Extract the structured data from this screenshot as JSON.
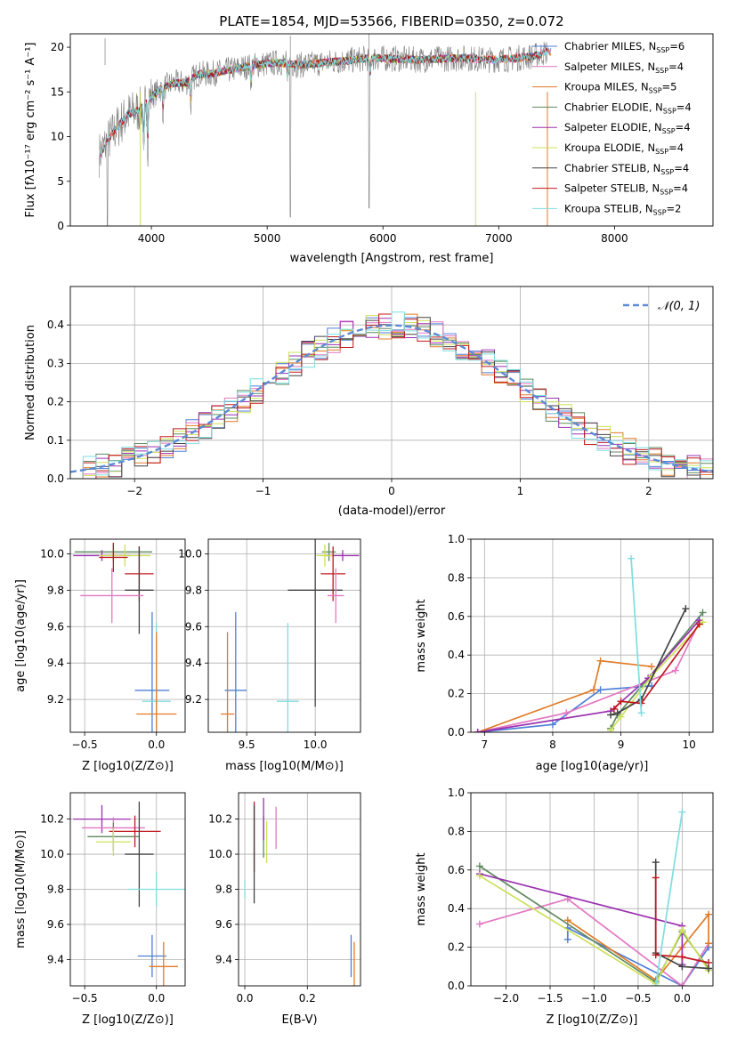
{
  "chart_data": [
    {
      "id": "spectrum",
      "type": "line",
      "title": "PLATE=1854, MJD=53566, FIBERID=0350, z=0.072",
      "xlabel": "wavelength [Angstrom, rest frame]",
      "ylabel": "Flux [fλ10⁻¹⁷ erg cm⁻² s⁻¹ A⁻¹]",
      "xlim": [
        3300,
        8850
      ],
      "ylim": [
        0,
        21.5
      ],
      "xticks": [
        4000,
        5000,
        6000,
        7000,
        8000
      ],
      "yticks": [
        0,
        5,
        10,
        15,
        20
      ],
      "grid": false,
      "legend_position": "upper-right",
      "observed_spectrum": {
        "color": "#808080",
        "x": [
          3550,
          3600,
          3700,
          3800,
          3900,
          4000,
          4100,
          4200,
          4300,
          4400,
          4500,
          4700,
          4900,
          5100,
          5300,
          5500,
          5700,
          5900,
          6100,
          6300,
          6500,
          6700,
          6900,
          7100,
          7300,
          7420
        ],
        "y": [
          8,
          9,
          11,
          12.5,
          13,
          14.5,
          15.5,
          16,
          16,
          17,
          17,
          17.5,
          18,
          18.3,
          18,
          18.3,
          18.5,
          18.8,
          18.7,
          18.6,
          18.7,
          18.8,
          18.6,
          18.7,
          19,
          19.5
        ]
      },
      "series": [
        {
          "name": "Chabrier MILES, N_SSP=6",
          "color": "#4f7fd6",
          "x_range": [
            3550,
            7450
          ]
        },
        {
          "name": "Salpeter MILES, N_SSP=4",
          "color": "#e377c2",
          "x_range": [
            3550,
            7450
          ]
        },
        {
          "name": "Kroupa MILES, N_SSP=5",
          "color": "#e07b28",
          "x_range": [
            3550,
            7450
          ]
        },
        {
          "name": "Chabrier ELODIE, N_SSP=4",
          "color": "#5f8a5f",
          "x_range": [
            3900,
            6800
          ]
        },
        {
          "name": "Salpeter ELODIE, N_SSP=4",
          "color": "#9b30b0",
          "x_range": [
            3900,
            6800
          ]
        },
        {
          "name": "Kroupa ELODIE, N_SSP=4",
          "color": "#cde05a",
          "x_range": [
            3900,
            6800
          ]
        },
        {
          "name": "Chabrier STELIB, N_SSP=4",
          "color": "#444444",
          "x_range": [
            3550,
            7420
          ]
        },
        {
          "name": "Salpeter STELIB, N_SSP=4",
          "color": "#c0191f",
          "x_range": [
            3550,
            7420
          ]
        },
        {
          "name": "Kroupa STELIB, N_SSP=2",
          "color": "#7fdde0",
          "x_range": [
            3550,
            7420
          ]
        }
      ],
      "legend_labels": [
        {
          "pre": "Chabrier MILES, N",
          "sub": "SSP",
          "post": "=6"
        },
        {
          "pre": "Salpeter MILES, N",
          "sub": "SSP",
          "post": "=4"
        },
        {
          "pre": "Kroupa MILES, N",
          "sub": "SSP",
          "post": "=5"
        },
        {
          "pre": "Chabrier ELODIE, N",
          "sub": "SSP",
          "post": "=4"
        },
        {
          "pre": "Salpeter ELODIE, N",
          "sub": "SSP",
          "post": "=4"
        },
        {
          "pre": "Kroupa ELODIE, N",
          "sub": "SSP",
          "post": "=4"
        },
        {
          "pre": "Chabrier STELIB, N",
          "sub": "SSP",
          "post": "=4"
        },
        {
          "pre": "Salpeter STELIB, N",
          "sub": "SSP",
          "post": "=4"
        },
        {
          "pre": "Kroupa STELIB, N",
          "sub": "SSP",
          "post": "=2"
        }
      ]
    },
    {
      "id": "residual-histogram",
      "type": "histogram",
      "xlabel": "(data-model)/error",
      "ylabel": "Normed distribution",
      "xlim": [
        -2.5,
        2.5
      ],
      "ylim": [
        0,
        0.5
      ],
      "xticks": [
        -2,
        -1,
        0,
        1,
        2
      ],
      "yticks": [
        0.0,
        0.1,
        0.2,
        0.3,
        0.4
      ],
      "grid": true,
      "legend_position": "upper-right",
      "legend": "𝒩(0, 1)",
      "reference_curve": {
        "name": "N(0,1)",
        "mean": 0,
        "sigma": 1,
        "color": "#5b8bd6",
        "style": "dashed"
      },
      "bin_width": 0.1
    },
    {
      "id": "age-vs-z",
      "type": "scatter-errorbar",
      "xlabel": "Z [log10(Z/Z⊙)]",
      "ylabel": "age [log10(age/yr)]",
      "xlim": [
        -0.6,
        0.2
      ],
      "ylim": [
        9.02,
        10.08
      ],
      "xticks": [
        -0.5,
        0.0
      ],
      "yticks": [
        9.2,
        9.4,
        9.6,
        9.8,
        10.0
      ],
      "grid": true,
      "points": [
        {
          "x": -0.3,
          "y": 10.01,
          "ex": 0.27,
          "ey": 0.05,
          "color": "#5f8a5f"
        },
        {
          "x": -0.38,
          "y": 9.99,
          "ex": 0.2,
          "ey": 0.03,
          "color": "#9b30b0"
        },
        {
          "x": -0.22,
          "y": 9.99,
          "ex": 0.18,
          "ey": 0.06,
          "color": "#cde05a"
        },
        {
          "x": -0.3,
          "y": 9.98,
          "ex": 0.1,
          "ey": 0.08,
          "color": "#c0191f"
        },
        {
          "x": -0.12,
          "y": 9.89,
          "ex": 0.1,
          "ey": 0.15,
          "color": "#c0191f"
        },
        {
          "x": -0.12,
          "y": 9.8,
          "ex": 0.1,
          "ey": 0.24,
          "color": "#444444"
        },
        {
          "x": -0.31,
          "y": 9.77,
          "ex": 0.22,
          "ey": 0.15,
          "color": "#e377c2"
        },
        {
          "x": -0.03,
          "y": 9.25,
          "ex": 0.12,
          "ey": 0.43,
          "color": "#4f7fd6"
        },
        {
          "x": 0.0,
          "y": 9.19,
          "ex": 0.1,
          "ey": 0.43,
          "color": "#7fdde0"
        },
        {
          "x": 0.0,
          "y": 9.12,
          "ex": 0.14,
          "ey": 0.45,
          "color": "#e07b28"
        }
      ]
    },
    {
      "id": "age-vs-mass",
      "type": "scatter-errorbar",
      "xlabel": "mass [log10(M/M⊙)]",
      "ylabel": "",
      "xlim": [
        9.22,
        10.33
      ],
      "ylim": [
        9.02,
        10.08
      ],
      "xticks": [
        9.5,
        10.0
      ],
      "yticks": [
        9.2,
        9.4,
        9.6,
        9.8,
        10.0
      ],
      "grid": true,
      "points": [
        {
          "x": 10.1,
          "y": 10.01,
          "ex": 0.05,
          "ey": 0.05,
          "color": "#5f8a5f"
        },
        {
          "x": 10.2,
          "y": 9.99,
          "ex": 0.12,
          "ey": 0.03,
          "color": "#9b30b0"
        },
        {
          "x": 10.07,
          "y": 9.99,
          "ex": 0.06,
          "ey": 0.06,
          "color": "#cde05a"
        },
        {
          "x": 10.13,
          "y": 9.89,
          "ex": 0.09,
          "ey": 0.15,
          "color": "#c0191f"
        },
        {
          "x": 10.0,
          "y": 9.8,
          "ex": 0.2,
          "ey": 0.64,
          "color": "#444444"
        },
        {
          "x": 10.15,
          "y": 9.77,
          "ex": 0.06,
          "ey": 0.15,
          "color": "#e377c2"
        },
        {
          "x": 9.42,
          "y": 9.25,
          "ex": 0.08,
          "ey": 0.43,
          "color": "#4f7fd6"
        },
        {
          "x": 9.8,
          "y": 9.19,
          "ex": 0.08,
          "ey": 0.43,
          "color": "#7fdde0"
        },
        {
          "x": 9.36,
          "y": 9.12,
          "ex": 0.05,
          "ey": 0.45,
          "color": "#e07b28"
        }
      ]
    },
    {
      "id": "weight-vs-age",
      "type": "line",
      "xlabel": "age [log10(age/yr)]",
      "ylabel": "mass weight",
      "xlim": [
        6.8,
        10.35
      ],
      "ylim": [
        0,
        1.0
      ],
      "xticks": [
        7,
        8,
        9,
        10
      ],
      "yticks": [
        0.0,
        0.2,
        0.4,
        0.6,
        0.8,
        1.0
      ],
      "grid": true,
      "series": [
        {
          "color": "#4f7fd6",
          "x": [
            6.9,
            8.0,
            8.7,
            9.45
          ],
          "y": [
            0.0,
            0.04,
            0.22,
            0.24
          ]
        },
        {
          "color": "#e377c2",
          "x": [
            6.9,
            8.2,
            9.8,
            10.15
          ],
          "y": [
            0.0,
            0.1,
            0.32,
            0.57
          ]
        },
        {
          "color": "#e07b28",
          "x": [
            6.9,
            8.6,
            8.7,
            9.45
          ],
          "y": [
            0.0,
            0.22,
            0.37,
            0.34
          ]
        },
        {
          "color": "#5f8a5f",
          "x": [
            8.85,
            8.95,
            9.4,
            10.2
          ],
          "y": [
            0.02,
            0.09,
            0.28,
            0.62
          ]
        },
        {
          "color": "#9b30b0",
          "x": [
            6.9,
            8.85,
            9.4,
            10.15
          ],
          "y": [
            0.0,
            0.11,
            0.28,
            0.58
          ]
        },
        {
          "color": "#cde05a",
          "x": [
            8.85,
            9.0,
            9.45,
            10.2
          ],
          "y": [
            0.01,
            0.08,
            0.29,
            0.57
          ]
        },
        {
          "color": "#444444",
          "x": [
            8.85,
            8.95,
            9.3,
            9.95
          ],
          "y": [
            0.09,
            0.1,
            0.17,
            0.64
          ]
        },
        {
          "color": "#c0191f",
          "x": [
            8.9,
            9.0,
            9.3,
            10.15
          ],
          "y": [
            0.12,
            0.16,
            0.15,
            0.56
          ]
        },
        {
          "color": "#7fdde0",
          "x": [
            9.15,
            9.3
          ],
          "y": [
            0.9,
            0.1
          ]
        }
      ]
    },
    {
      "id": "mass-vs-z",
      "type": "scatter-errorbar",
      "xlabel": "Z [log10(Z/Z⊙)]",
      "ylabel": "mass [log10(M/M⊙)]",
      "xlim": [
        -0.6,
        0.2
      ],
      "ylim": [
        9.25,
        10.35
      ],
      "xticks": [
        -0.5,
        0.0
      ],
      "yticks": [
        9.4,
        9.6,
        9.8,
        10.0,
        10.2
      ],
      "grid": true,
      "points": [
        {
          "x": -0.38,
          "y": 10.2,
          "ex": 0.2,
          "ey": 0.08,
          "color": "#9b30b0"
        },
        {
          "x": -0.3,
          "y": 10.15,
          "ex": 0.22,
          "ey": 0.06,
          "color": "#e377c2"
        },
        {
          "x": -0.15,
          "y": 10.13,
          "ex": 0.18,
          "ey": 0.09,
          "color": "#c0191f"
        },
        {
          "x": -0.3,
          "y": 10.1,
          "ex": 0.18,
          "ey": 0.08,
          "color": "#5f8a5f"
        },
        {
          "x": -0.3,
          "y": 10.07,
          "ex": 0.12,
          "ey": 0.08,
          "color": "#cde05a"
        },
        {
          "x": -0.12,
          "y": 10.0,
          "ex": 0.1,
          "ey": 0.3,
          "color": "#444444"
        },
        {
          "x": 0.0,
          "y": 9.8,
          "ex": 0.2,
          "ey": 0.1,
          "color": "#7fdde0"
        },
        {
          "x": -0.03,
          "y": 9.42,
          "ex": 0.1,
          "ey": 0.12,
          "color": "#4f7fd6"
        },
        {
          "x": 0.05,
          "y": 9.36,
          "ex": 0.1,
          "ey": 0.14,
          "color": "#e07b28"
        }
      ]
    },
    {
      "id": "mass-vs-ebv",
      "type": "scatter-errorbar",
      "xlabel": "E(B-V)",
      "ylabel": "",
      "xlim": [
        -0.02,
        0.37
      ],
      "ylim": [
        9.25,
        10.35
      ],
      "xticks": [
        0.0,
        0.2
      ],
      "yticks": [
        9.4,
        9.6,
        9.8,
        10.0,
        10.2
      ],
      "grid": true,
      "points": [
        {
          "x": 0.0,
          "y": 9.8,
          "ex": 0.0,
          "ey": 0.05,
          "color": "#7fdde0"
        },
        {
          "x": 0.03,
          "y": 10.1,
          "ex": 0.0,
          "ey": 0.2,
          "color": "#c0191f"
        },
        {
          "x": 0.03,
          "y": 10.0,
          "ex": 0.0,
          "ey": 0.28,
          "color": "#444444"
        },
        {
          "x": 0.06,
          "y": 10.1,
          "ex": 0.0,
          "ey": 0.12,
          "color": "#5f8a5f"
        },
        {
          "x": 0.06,
          "y": 10.2,
          "ex": 0.0,
          "ey": 0.12,
          "color": "#9b30b0"
        },
        {
          "x": 0.07,
          "y": 10.07,
          "ex": 0.0,
          "ey": 0.12,
          "color": "#cde05a"
        },
        {
          "x": 0.1,
          "y": 10.15,
          "ex": 0.0,
          "ey": 0.12,
          "color": "#e377c2"
        },
        {
          "x": 0.34,
          "y": 9.42,
          "ex": 0.0,
          "ey": 0.12,
          "color": "#4f7fd6"
        },
        {
          "x": 0.35,
          "y": 9.36,
          "ex": 0.0,
          "ey": 0.14,
          "color": "#e07b28"
        }
      ]
    },
    {
      "id": "weight-vs-z",
      "type": "line",
      "xlabel": "Z [log10(Z/Z⊙)]",
      "ylabel": "mass weight",
      "xlim": [
        -2.4,
        0.35
      ],
      "ylim": [
        0,
        1.0
      ],
      "xticks": [
        -2.0,
        -1.5,
        -1.0,
        -0.5,
        0.0
      ],
      "yticks": [
        0.0,
        0.2,
        0.4,
        0.6,
        0.8,
        1.0
      ],
      "grid": true,
      "series": [
        {
          "color": "#4f7fd6",
          "x": [
            -1.3,
            -1.3,
            0.0,
            0.3
          ],
          "y": [
            0.24,
            0.3,
            0.0,
            0.2
          ]
        },
        {
          "color": "#e377c2",
          "x": [
            -2.3,
            -1.3,
            0.0,
            0.3
          ],
          "y": [
            0.32,
            0.45,
            0.0,
            0.22
          ]
        },
        {
          "color": "#e07b28",
          "x": [
            -1.3,
            -0.3,
            0.0,
            0.3,
            0.3
          ],
          "y": [
            0.34,
            0.03,
            0.2,
            0.37,
            0.22
          ]
        },
        {
          "color": "#5f8a5f",
          "x": [
            -2.3,
            -0.3,
            0.0,
            0.3
          ],
          "y": [
            0.62,
            0.02,
            0.28,
            0.09
          ]
        },
        {
          "color": "#9b30b0",
          "x": [
            -2.3,
            0.0,
            0.0
          ],
          "y": [
            0.58,
            0.31,
            0.11
          ]
        },
        {
          "color": "#cde05a",
          "x": [
            -2.3,
            -0.3,
            0.0,
            0.3
          ],
          "y": [
            0.57,
            0.01,
            0.29,
            0.08
          ]
        },
        {
          "color": "#444444",
          "x": [
            -0.3,
            -0.3,
            0.0,
            0.3
          ],
          "y": [
            0.64,
            0.17,
            0.1,
            0.09
          ]
        },
        {
          "color": "#c0191f",
          "x": [
            -0.3,
            -0.3,
            0.0,
            0.3
          ],
          "y": [
            0.56,
            0.16,
            0.15,
            0.12
          ]
        },
        {
          "color": "#7fdde0",
          "x": [
            0.0,
            -0.3
          ],
          "y": [
            0.9,
            0.0
          ]
        }
      ]
    }
  ]
}
